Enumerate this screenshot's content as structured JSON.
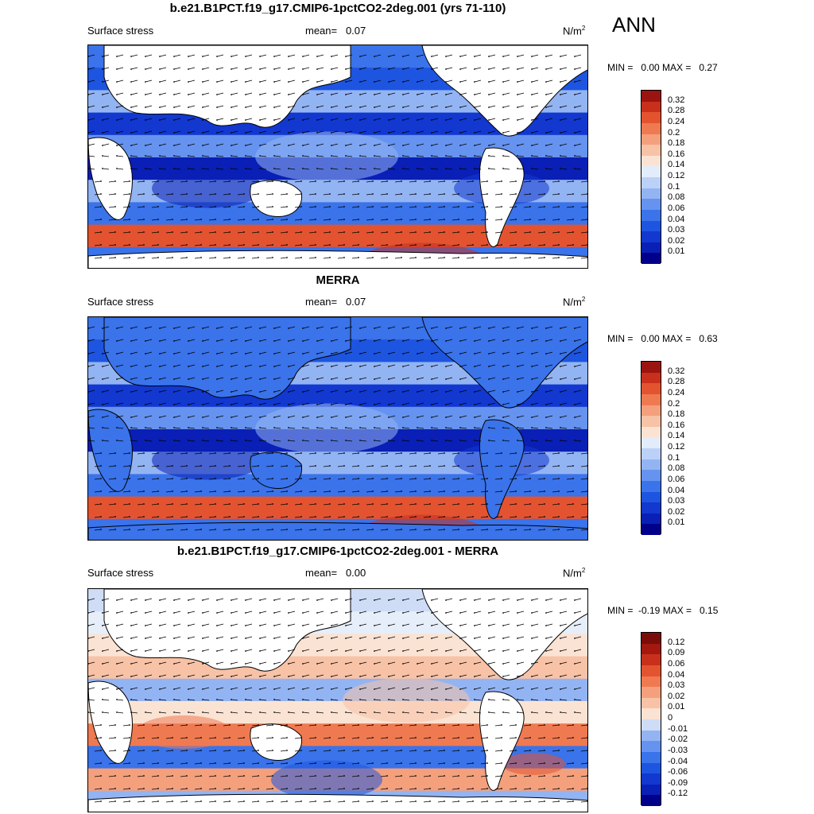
{
  "season": "ANN",
  "panels": [
    {
      "title": "b.e21.B1PCT.f19_g17.CMIP6-1pctCO2-2deg.001 (yrs 71-110)",
      "left_label": "Surface stress",
      "mean_text": "mean=   0.07",
      "units_base": "N/m",
      "units_exp": "2",
      "minmax": "MIN =   0.00 MAX =   0.27"
    },
    {
      "title": "MERRA",
      "left_label": "Surface stress",
      "mean_text": "mean=   0.07",
      "units_base": "N/m",
      "units_exp": "2",
      "minmax": "MIN =   0.00 MAX =   0.63"
    },
    {
      "title": "b.e21.B1PCT.f19_g17.CMIP6-1pctCO2-2deg.001 - MERRA",
      "left_label": "Surface stress",
      "mean_text": "mean=   0.00",
      "units_base": "N/m",
      "units_exp": "2",
      "minmax": "MIN =  -0.19 MAX =   0.15"
    }
  ],
  "chart_data": [
    {
      "type": "heatmap",
      "title": "b.e21.B1PCT.f19_g17.CMIP6-1pctCO2-2deg.001 (yrs 71-110)",
      "variable": "Surface stress",
      "units": "N/m2",
      "mean": 0.07,
      "min": 0.0,
      "max": 0.27,
      "colorbar_levels": [
        0.01,
        0.02,
        0.03,
        0.04,
        0.06,
        0.08,
        0.1,
        0.12,
        0.14,
        0.16,
        0.18,
        0.2,
        0.24,
        0.28,
        0.32
      ],
      "colorbar_colors": [
        "#00008b",
        "#0a1fb5",
        "#1238d0",
        "#1d55e0",
        "#3a73ea",
        "#6593ef",
        "#93b4f3",
        "#bcd1f7",
        "#e3ecfa",
        "#fbe3d3",
        "#f8c2a6",
        "#f4a07c",
        "#ef7a52",
        "#e45330",
        "#c8301c",
        "#9b1410"
      ],
      "overlay": "wind stress vectors"
    },
    {
      "type": "heatmap",
      "title": "MERRA",
      "variable": "Surface stress",
      "units": "N/m2",
      "mean": 0.07,
      "min": 0.0,
      "max": 0.63,
      "colorbar_levels": [
        0.01,
        0.02,
        0.03,
        0.04,
        0.06,
        0.08,
        0.1,
        0.12,
        0.14,
        0.16,
        0.18,
        0.2,
        0.24,
        0.28,
        0.32
      ],
      "colorbar_colors": [
        "#00008b",
        "#0a1fb5",
        "#1238d0",
        "#1d55e0",
        "#3a73ea",
        "#6593ef",
        "#93b4f3",
        "#bcd1f7",
        "#e3ecfa",
        "#fbe3d3",
        "#f8c2a6",
        "#f4a07c",
        "#ef7a52",
        "#e45330",
        "#c8301c",
        "#9b1410"
      ],
      "overlay": "wind stress vectors"
    },
    {
      "type": "heatmap",
      "title": "b.e21.B1PCT.f19_g17.CMIP6-1pctCO2-2deg.001 - MERRA",
      "variable": "Surface stress",
      "units": "N/m2",
      "mean": 0.0,
      "min": -0.19,
      "max": 0.15,
      "colorbar_levels": [
        -0.12,
        -0.09,
        -0.06,
        -0.04,
        -0.03,
        -0.02,
        -0.01,
        0,
        0.01,
        0.02,
        0.03,
        0.04,
        0.06,
        0.09,
        0.12
      ],
      "colorbar_colors": [
        "#00008b",
        "#0a1fb5",
        "#1238d0",
        "#1d55e0",
        "#3a73ea",
        "#6593ef",
        "#93b4f3",
        "#cfdcf6",
        "#fbe3d3",
        "#f8c2a6",
        "#f4a07c",
        "#ef7a52",
        "#e45330",
        "#c8301c",
        "#a4180e",
        "#7a0d0a"
      ],
      "overlay": "wind stress vectors"
    }
  ]
}
